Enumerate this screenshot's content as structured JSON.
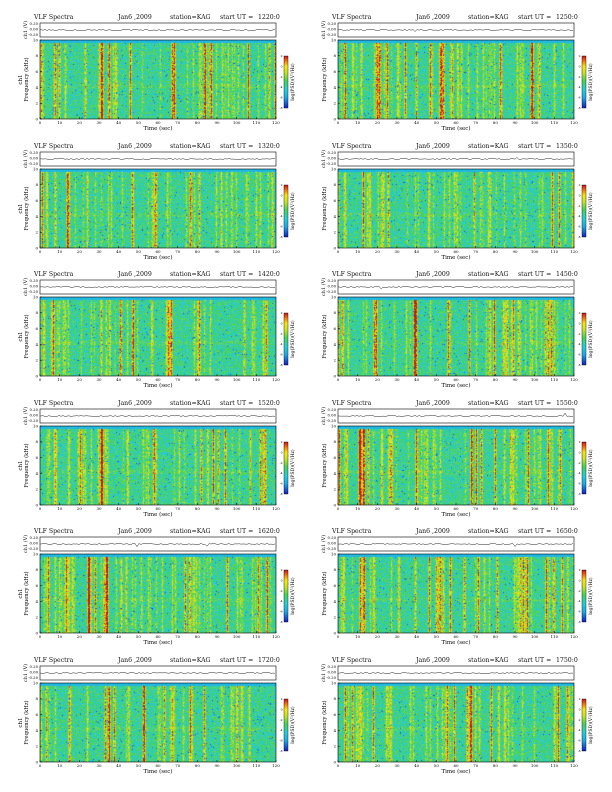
{
  "panel_common": {
    "title": "VLF Spectra",
    "date": "Jan6 ,2009",
    "station": "station=KAG",
    "start_prefix": "start  UT  =",
    "ch_label": "ch1 (V)",
    "ylabel_left": "ch1\nFrequency (kHz)",
    "ylabel_right": "Frequency (kHz)",
    "xlabel": "Time (sec)",
    "cbar_label": "log(PSD)(V²/Hz)",
    "cbar_ticks": [
      "2",
      "0",
      "-2",
      "-4",
      "-6",
      "-8"
    ]
  },
  "panels": [
    {
      "start_ut": "1220:0"
    },
    {
      "start_ut": "1250:0"
    },
    {
      "start_ut": "1320:0"
    },
    {
      "start_ut": "1350:0"
    },
    {
      "start_ut": "1420:0"
    },
    {
      "start_ut": "1450:0"
    },
    {
      "start_ut": "1520:0"
    },
    {
      "start_ut": "1550:0"
    },
    {
      "start_ut": "1620:0"
    },
    {
      "start_ut": "1650:0"
    },
    {
      "start_ut": "1720:0"
    },
    {
      "start_ut": "1750:0"
    }
  ],
  "chart_data": {
    "type": "heatmap",
    "x": {
      "label": "Time (sec)",
      "range": [
        0,
        120
      ],
      "ticks": [
        0,
        10,
        20,
        30,
        40,
        50,
        60,
        70,
        80,
        90,
        100,
        110,
        120
      ]
    },
    "y": {
      "label": "Frequency (kHz)",
      "range": [
        0,
        10
      ],
      "ticks": [
        0,
        2,
        4,
        6,
        8,
        10
      ]
    },
    "trace_y": {
      "label": "ch1 (V)",
      "range": [
        -0.2,
        0.2
      ],
      "ticks": [
        "0.20",
        "0.00",
        "-0.20"
      ]
    },
    "colorbar": {
      "label": "log(PSD)(V²/Hz)",
      "range": [
        -8,
        2
      ]
    },
    "colors": {
      "high": "#d01010",
      "mid_high": "#f0e800",
      "mid": "#40d040",
      "low": "#30c8c8",
      "min": "#1020c0",
      "background": "#20d0f0"
    }
  }
}
